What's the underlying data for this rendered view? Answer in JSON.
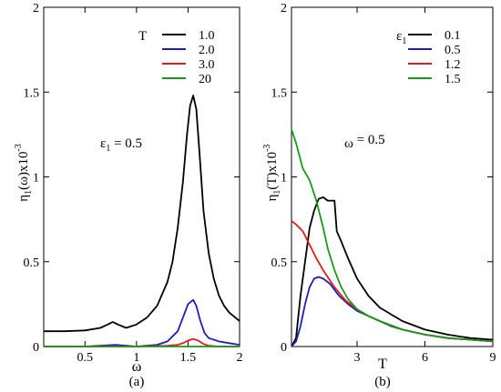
{
  "chart_data": [
    {
      "type": "line",
      "panel_label": "(a)",
      "xlabel": "ω",
      "ylabel": {
        "base": "η",
        "sub": "1",
        "mid": "(ω)x10",
        "sup": "-3"
      },
      "xlim": [
        0.1,
        2.0
      ],
      "ylim": [
        0,
        2
      ],
      "xticks": [
        0.5,
        1,
        1.5,
        2
      ],
      "xtick_labels": [
        "0.5",
        "1",
        "1.5",
        "2"
      ],
      "yticks": [
        0,
        0.5,
        1,
        1.5,
        2
      ],
      "ytick_labels": [
        "0",
        "0.5",
        "1",
        "1.5",
        "2"
      ],
      "legend_title": "T",
      "legend_position": "top-right",
      "annotation": {
        "base": "ε",
        "sub": "1",
        "rest": " = 0.5"
      },
      "series": [
        {
          "name": "1.0",
          "color": "#000000",
          "x": [
            0.1,
            0.3,
            0.5,
            0.65,
            0.72,
            0.77,
            0.82,
            0.9,
            1.0,
            1.1,
            1.2,
            1.3,
            1.35,
            1.4,
            1.45,
            1.49,
            1.52,
            1.55,
            1.58,
            1.61,
            1.65,
            1.7,
            1.75,
            1.8,
            1.85,
            1.9,
            2.0
          ],
          "y": [
            0.09,
            0.09,
            0.095,
            0.11,
            0.13,
            0.145,
            0.13,
            0.11,
            0.13,
            0.17,
            0.24,
            0.38,
            0.5,
            0.7,
            0.97,
            1.25,
            1.42,
            1.48,
            1.4,
            1.15,
            0.8,
            0.55,
            0.4,
            0.3,
            0.24,
            0.2,
            0.15
          ]
        },
        {
          "name": "2.0",
          "color": "#1f1fb4",
          "x": [
            0.1,
            0.5,
            0.8,
            1.0,
            1.2,
            1.3,
            1.4,
            1.45,
            1.5,
            1.55,
            1.58,
            1.62,
            1.66,
            1.7,
            1.8,
            1.9,
            2.0
          ],
          "y": [
            0.0,
            0.0,
            0.01,
            0.0,
            0.01,
            0.03,
            0.09,
            0.17,
            0.25,
            0.275,
            0.24,
            0.15,
            0.08,
            0.05,
            0.03,
            0.02,
            0.01
          ]
        },
        {
          "name": "3.0",
          "color": "#e41a1c",
          "x": [
            0.1,
            1.0,
            1.3,
            1.4,
            1.45,
            1.5,
            1.55,
            1.6,
            1.65,
            1.7,
            1.8,
            2.0
          ],
          "y": [
            0.0,
            0.0,
            0.005,
            0.01,
            0.02,
            0.035,
            0.045,
            0.035,
            0.015,
            0.005,
            0.0,
            0.0
          ]
        },
        {
          "name": "20",
          "color": "#1a9a1a",
          "x": [
            0.1,
            2.0
          ],
          "y": [
            0.0,
            0.0
          ]
        }
      ]
    },
    {
      "type": "line",
      "panel_label": "(b)",
      "xlabel": "T",
      "ylabel": {
        "base": "η",
        "sub": "1",
        "mid": "(T)x10",
        "sup": "-3"
      },
      "xlim": [
        0.1,
        9
      ],
      "ylim": [
        0,
        2
      ],
      "xticks": [
        3,
        6,
        9
      ],
      "xtick_labels": [
        "3",
        "6",
        "9"
      ],
      "yticks": [
        0,
        0.5,
        1,
        1.5,
        2
      ],
      "ytick_labels": [
        "0",
        "0.5",
        "1",
        "1.5",
        "2"
      ],
      "legend_title": {
        "base": "ε",
        "sub": "1"
      },
      "legend_position": "top-right",
      "annotation": {
        "base": "ω",
        "sub": "",
        "rest": " = 0.5"
      },
      "series": [
        {
          "name": "0.1",
          "color": "#000000",
          "x": [
            0.1,
            0.3,
            0.5,
            0.7,
            0.9,
            1.1,
            1.3,
            1.5,
            1.7,
            2.0,
            2.1,
            2.3,
            2.6,
            3.0,
            3.5,
            4.0,
            4.5,
            5.0,
            6.0,
            7.0,
            8.0,
            9.0
          ],
          "y": [
            0.0,
            0.05,
            0.3,
            0.5,
            0.7,
            0.8,
            0.87,
            0.88,
            0.86,
            0.86,
            0.68,
            0.62,
            0.52,
            0.4,
            0.3,
            0.23,
            0.19,
            0.15,
            0.1,
            0.07,
            0.05,
            0.04
          ]
        },
        {
          "name": "0.5",
          "color": "#1f1fb4",
          "x": [
            0.1,
            0.3,
            0.5,
            0.7,
            0.9,
            1.1,
            1.3,
            1.5,
            1.8,
            2.2,
            2.6,
            3.0,
            3.5,
            4.0,
            4.5,
            5.0,
            6.0,
            7.0,
            8.0,
            9.0
          ],
          "y": [
            0.0,
            0.03,
            0.12,
            0.25,
            0.35,
            0.4,
            0.41,
            0.4,
            0.37,
            0.3,
            0.25,
            0.21,
            0.18,
            0.15,
            0.12,
            0.1,
            0.07,
            0.05,
            0.04,
            0.03
          ]
        },
        {
          "name": "1.2",
          "color": "#e41a1c",
          "x": [
            0.1,
            0.3,
            0.6,
            0.9,
            1.2,
            1.5,
            2.0,
            2.5,
            3.0,
            3.5,
            4.0,
            5.0,
            6.0,
            7.0,
            8.0,
            9.0
          ],
          "y": [
            0.74,
            0.72,
            0.68,
            0.6,
            0.52,
            0.45,
            0.35,
            0.27,
            0.22,
            0.18,
            0.15,
            0.1,
            0.07,
            0.05,
            0.04,
            0.03
          ]
        },
        {
          "name": "1.5",
          "color": "#1a9a1a",
          "x": [
            0.1,
            0.3,
            0.6,
            0.9,
            1.2,
            1.5,
            1.7,
            2.0,
            2.3,
            2.6,
            3.0,
            3.5,
            4.0,
            5.0,
            6.0,
            7.0,
            8.0,
            9.0
          ],
          "y": [
            1.28,
            1.2,
            1.05,
            0.98,
            0.86,
            0.7,
            0.58,
            0.45,
            0.35,
            0.28,
            0.22,
            0.18,
            0.15,
            0.1,
            0.07,
            0.05,
            0.04,
            0.03
          ]
        }
      ]
    }
  ]
}
